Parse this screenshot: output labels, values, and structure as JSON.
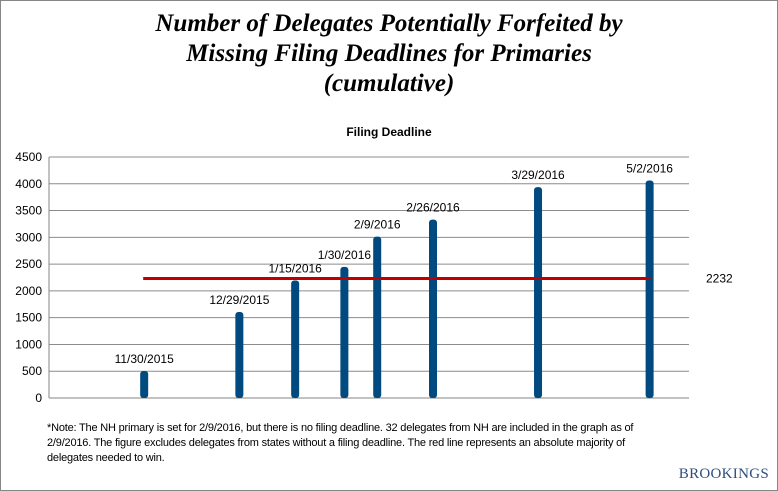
{
  "chart_data": {
    "type": "bar",
    "title": "Number of Delegates Potentially Forfeited by Missing Filing Deadlines for Primaries (cumulative)",
    "title_lines": [
      "Number of Delegates Potentially Forfeited by",
      "Missing Filing Deadlines for Primaries",
      "(cumulative)"
    ],
    "subtitle": "Filing Deadline",
    "xlabel": "",
    "ylabel": "",
    "ylim": [
      0,
      4500
    ],
    "yticks": [
      0,
      500,
      1000,
      1500,
      2000,
      2500,
      3000,
      3500,
      4000,
      4500
    ],
    "grid": true,
    "x_is_date_axis": true,
    "categories": [
      "11/30/2015",
      "12/29/2015",
      "1/15/2016",
      "1/30/2016",
      "2/9/2016",
      "2/26/2016",
      "3/29/2016",
      "5/2/2016"
    ],
    "values": [
      505,
      1605,
      2195,
      2448,
      3013,
      3330,
      3937,
      4061
    ],
    "bar_color": "#004a80",
    "reference_line": {
      "value": 2232,
      "label": "2232",
      "color": "#c00000"
    }
  },
  "note": "*Note: The NH primary is set for 2/9/2016, but there is no filing deadline. 32 delegates from NH are included in the graph as of 2/9/2016. The figure excludes delegates from states without a filing deadline. The red line represents an absolute majority of delegates needed to win.",
  "logo": "BROOKINGS"
}
